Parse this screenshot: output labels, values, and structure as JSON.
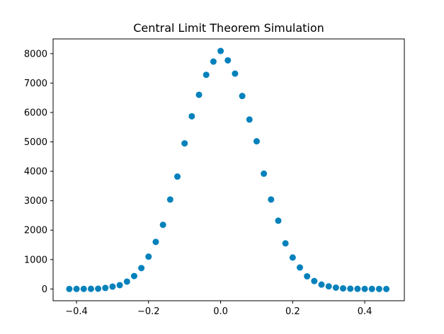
{
  "chart_data": {
    "type": "scatter",
    "title": "Central Limit Theorem Simulation",
    "xlabel": "",
    "ylabel": "",
    "xlim": [
      -0.465,
      0.51
    ],
    "ylim": [
      -400,
      8500
    ],
    "x_ticks": [
      -0.4,
      -0.2,
      0.0,
      0.2,
      0.4
    ],
    "x_tick_labels": [
      "−0.4",
      "−0.2",
      "0.0",
      "0.2",
      "0.4"
    ],
    "y_ticks": [
      0,
      1000,
      2000,
      3000,
      4000,
      5000,
      6000,
      7000,
      8000
    ],
    "y_tick_labels": [
      "0",
      "1000",
      "2000",
      "3000",
      "4000",
      "5000",
      "6000",
      "7000",
      "8000"
    ],
    "grid": false,
    "marker_color": "#0281bb",
    "series": [
      {
        "x": [
          -0.42,
          -0.4,
          -0.38,
          -0.36,
          -0.34,
          -0.32,
          -0.3,
          -0.28,
          -0.26,
          -0.24,
          -0.22,
          -0.2,
          -0.18,
          -0.16,
          -0.14,
          -0.12,
          -0.1,
          -0.08,
          -0.06,
          -0.04,
          -0.02,
          0.0,
          0.02,
          0.04,
          0.06,
          0.08,
          0.1,
          0.12,
          0.14,
          0.16,
          0.18,
          0.2,
          0.22,
          0.24,
          0.26,
          0.28,
          0.3,
          0.32,
          0.34,
          0.36,
          0.38,
          0.4,
          0.42,
          0.44,
          0.46
        ],
        "y": [
          1,
          2,
          3,
          5,
          10,
          35,
          80,
          130,
          250,
          440,
          710,
          1100,
          1600,
          2180,
          3040,
          3820,
          4950,
          5870,
          6600,
          7280,
          7730,
          8090,
          7770,
          7320,
          6560,
          5760,
          5020,
          3920,
          3040,
          2320,
          1550,
          1070,
          730,
          430,
          270,
          150,
          90,
          45,
          20,
          10,
          5,
          3,
          2,
          1,
          0
        ]
      }
    ]
  }
}
